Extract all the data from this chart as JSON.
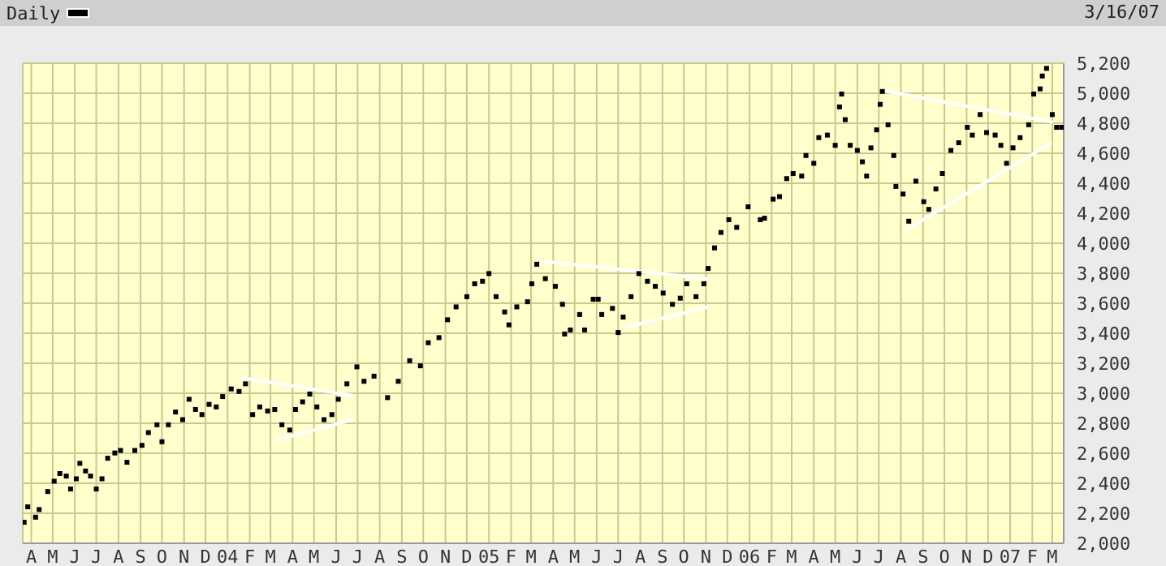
{
  "chart_data": {
    "type": "scatter",
    "subtitle": "3/16/07",
    "legend": "top left",
    "grid": true,
    "xlim": [
      "2003-03-20",
      "2007-03-17"
    ],
    "xticks": [
      {
        "value": "2003-04",
        "label": "A"
      },
      {
        "value": "2003-05",
        "label": "M"
      },
      {
        "value": "2003-06",
        "label": "J"
      },
      {
        "value": "2003-07",
        "label": "J"
      },
      {
        "value": "2003-08",
        "label": "A"
      },
      {
        "value": "2003-09",
        "label": "S"
      },
      {
        "value": "2003-10",
        "label": "O"
      },
      {
        "value": "2003-11",
        "label": "N"
      },
      {
        "value": "2003-12",
        "label": "D"
      },
      {
        "value": "2004-01",
        "label": "04"
      },
      {
        "value": "2004-02",
        "label": "F"
      },
      {
        "value": "2004-03",
        "label": "M"
      },
      {
        "value": "2004-04",
        "label": "A"
      },
      {
        "value": "2004-05",
        "label": "M"
      },
      {
        "value": "2004-06",
        "label": "J"
      },
      {
        "value": "2004-07",
        "label": "J"
      },
      {
        "value": "2004-08",
        "label": "A"
      },
      {
        "value": "2004-09",
        "label": "S"
      },
      {
        "value": "2004-10",
        "label": "O"
      },
      {
        "value": "2004-11",
        "label": "N"
      },
      {
        "value": "2004-12",
        "label": "D"
      },
      {
        "value": "2005-01",
        "label": "05"
      },
      {
        "value": "2005-02",
        "label": "F"
      },
      {
        "value": "2005-03",
        "label": "M"
      },
      {
        "value": "2005-04",
        "label": "A"
      },
      {
        "value": "2005-05",
        "label": "M"
      },
      {
        "value": "2005-06",
        "label": "J"
      },
      {
        "value": "2005-07",
        "label": "J"
      },
      {
        "value": "2005-08",
        "label": "A"
      },
      {
        "value": "2005-09",
        "label": "S"
      },
      {
        "value": "2005-10",
        "label": "O"
      },
      {
        "value": "2005-11",
        "label": "N"
      },
      {
        "value": "2005-12",
        "label": "D"
      },
      {
        "value": "2006-01",
        "label": "06"
      },
      {
        "value": "2006-02",
        "label": "F"
      },
      {
        "value": "2006-03",
        "label": "M"
      },
      {
        "value": "2006-04",
        "label": "A"
      },
      {
        "value": "2006-05",
        "label": "M"
      },
      {
        "value": "2006-06",
        "label": "J"
      },
      {
        "value": "2006-07",
        "label": "J"
      },
      {
        "value": "2006-08",
        "label": "A"
      },
      {
        "value": "2006-09",
        "label": "S"
      },
      {
        "value": "2006-10",
        "label": "O"
      },
      {
        "value": "2006-11",
        "label": "N"
      },
      {
        "value": "2006-12",
        "label": "D"
      },
      {
        "value": "2007-01",
        "label": "07"
      },
      {
        "value": "2007-02",
        "label": "F"
      },
      {
        "value": "2007-03",
        "label": "M"
      }
    ],
    "ylim": [
      2000,
      5200
    ],
    "yticks": [
      {
        "value": 2000,
        "label": "2,000"
      },
      {
        "value": 2200,
        "label": "2,200"
      },
      {
        "value": 2400,
        "label": "2,400"
      },
      {
        "value": 2600,
        "label": "2,600"
      },
      {
        "value": 2800,
        "label": "2,800"
      },
      {
        "value": 3000,
        "label": "3,000"
      },
      {
        "value": 3200,
        "label": "3,200"
      },
      {
        "value": 3400,
        "label": "3,400"
      },
      {
        "value": 3600,
        "label": "3,600"
      },
      {
        "value": 3800,
        "label": "3,800"
      },
      {
        "value": 4000,
        "label": "4,000"
      },
      {
        "value": 4200,
        "label": "4,200"
      },
      {
        "value": 4400,
        "label": "4,400"
      },
      {
        "value": 4600,
        "label": "4,600"
      },
      {
        "value": 4800,
        "label": "4,800"
      },
      {
        "value": 5000,
        "label": "5,000"
      },
      {
        "value": 5200,
        "label": "5,200"
      }
    ],
    "series": [
      {
        "name": "Daily",
        "marker": "square",
        "color": "#000000",
        "x": [
          "2003-03-22",
          "2003-03-27",
          "2003-04-07",
          "2003-04-12",
          "2003-04-24",
          "2003-05-03",
          "2003-05-11",
          "2003-05-20",
          "2003-05-26",
          "2003-06-03",
          "2003-06-08",
          "2003-06-16",
          "2003-06-23",
          "2003-07-01",
          "2003-07-09",
          "2003-07-17",
          "2003-07-27",
          "2003-08-04",
          "2003-08-13",
          "2003-08-24",
          "2003-09-03",
          "2003-09-12",
          "2003-09-24",
          "2003-10-01",
          "2003-10-10",
          "2003-10-20",
          "2003-10-30",
          "2003-11-08",
          "2003-11-17",
          "2003-11-26",
          "2003-12-06",
          "2003-12-16",
          "2003-12-25",
          "2004-01-06",
          "2004-01-17",
          "2004-01-26",
          "2004-02-05",
          "2004-02-15",
          "2004-02-26",
          "2004-03-07",
          "2004-03-17",
          "2004-03-28",
          "2004-04-05",
          "2004-04-15",
          "2004-04-25",
          "2004-05-05",
          "2004-05-15",
          "2004-05-26",
          "2004-06-04",
          "2004-06-16",
          "2004-06-30",
          "2004-07-10",
          "2004-07-24",
          "2004-08-12",
          "2004-08-27",
          "2004-09-12",
          "2004-09-27",
          "2004-10-08",
          "2004-10-23",
          "2004-11-04",
          "2004-11-16",
          "2004-12-01",
          "2004-12-12",
          "2004-12-23",
          "2005-01-01",
          "2005-01-11",
          "2005-01-23",
          "2005-01-29",
          "2005-02-09",
          "2005-02-24",
          "2005-03-02",
          "2005-03-09",
          "2005-03-21",
          "2005-04-04",
          "2005-04-14",
          "2005-04-17",
          "2005-04-25",
          "2005-05-08",
          "2005-05-15",
          "2005-05-27",
          "2005-06-03",
          "2005-06-08",
          "2005-06-23",
          "2005-07-01",
          "2005-07-08",
          "2005-07-19",
          "2005-07-30",
          "2005-08-11",
          "2005-08-22",
          "2005-09-02",
          "2005-09-15",
          "2005-09-26",
          "2005-10-05",
          "2005-10-18",
          "2005-10-29",
          "2005-11-04",
          "2005-11-13",
          "2005-11-22",
          "2005-12-03",
          "2005-12-14",
          "2005-12-30",
          "2006-01-16",
          "2006-01-22",
          "2006-02-03",
          "2006-02-12",
          "2006-02-22",
          "2006-03-03",
          "2006-03-15",
          "2006-03-21",
          "2006-04-01",
          "2006-04-08",
          "2006-04-20",
          "2006-05-01",
          "2006-05-07",
          "2006-05-10",
          "2006-05-15",
          "2006-05-22",
          "2006-06-01",
          "2006-06-08",
          "2006-06-14",
          "2006-06-20",
          "2006-06-28",
          "2006-07-03",
          "2006-07-06",
          "2006-07-14",
          "2006-07-22",
          "2006-07-25",
          "2006-08-04",
          "2006-08-12",
          "2006-08-22",
          "2006-09-02",
          "2006-09-09",
          "2006-09-19",
          "2006-09-28",
          "2006-10-10",
          "2006-10-21",
          "2006-11-02",
          "2006-11-09",
          "2006-11-20",
          "2006-11-29",
          "2006-12-11",
          "2006-12-19",
          "2006-12-27",
          "2007-01-05",
          "2007-01-15",
          "2007-01-27",
          "2007-02-03",
          "2007-02-12",
          "2007-02-15",
          "2007-02-21",
          "2007-03-01",
          "2007-03-07",
          "2007-03-14"
        ],
        "values": [
          2140,
          2243,
          2174,
          2225,
          2345,
          2414,
          2465,
          2448,
          2362,
          2430,
          2533,
          2482,
          2448,
          2362,
          2430,
          2567,
          2602,
          2619,
          2540,
          2619,
          2653,
          2738,
          2790,
          2677,
          2790,
          2875,
          2824,
          2960,
          2892,
          2858,
          2926,
          2909,
          2978,
          3029,
          3012,
          3063,
          2858,
          2909,
          2882,
          2892,
          2790,
          2755,
          2892,
          2943,
          2995,
          2909,
          2824,
          2858,
          2960,
          3063,
          3176,
          3080,
          3114,
          2971,
          3080,
          3217,
          3183,
          3337,
          3371,
          3490,
          3576,
          3644,
          3730,
          3747,
          3798,
          3644,
          3542,
          3456,
          3576,
          3610,
          3730,
          3860,
          3764,
          3713,
          3593,
          3395,
          3422,
          3525,
          3422,
          3627,
          3627,
          3525,
          3566,
          3405,
          3508,
          3644,
          3798,
          3747,
          3713,
          3668,
          3593,
          3634,
          3730,
          3644,
          3730,
          3832,
          3969,
          4072,
          4157,
          4106,
          4243,
          4157,
          4167,
          4294,
          4311,
          4431,
          4465,
          4448,
          4585,
          4533,
          4704,
          4721,
          4653,
          4909,
          4995,
          4824,
          4653,
          4619,
          4543,
          4448,
          4636,
          4756,
          4926,
          5012,
          4790,
          4585,
          4379,
          4328,
          4147,
          4414,
          4277,
          4226,
          4362,
          4465,
          4619,
          4670,
          4773,
          4721,
          4858,
          4738,
          4721,
          4653,
          4533,
          4636,
          4704,
          4790,
          4995,
          5029,
          5115,
          5166,
          4858,
          4773,
          4773
        ]
      },
      {
        "type": "line",
        "color": "#ffffff",
        "x": [
          "2004-01-20",
          "2004-06-24"
        ],
        "values": [
          3104,
          2985
        ]
      },
      {
        "type": "line",
        "color": "#ffffff",
        "x": [
          "2004-03-09",
          "2004-06-24"
        ],
        "values": [
          2687,
          2824
        ]
      },
      {
        "type": "line",
        "color": "#ffffff",
        "x": [
          "2005-03-12",
          "2005-11-03"
        ],
        "values": [
          3884,
          3764
        ]
      },
      {
        "type": "line",
        "color": "#ffffff",
        "x": [
          "2005-07-11",
          "2005-11-03"
        ],
        "values": [
          3439,
          3576
        ]
      },
      {
        "type": "line",
        "color": "#ffffff",
        "x": [
          "2006-07-03",
          "2007-03-02"
        ],
        "values": [
          5022,
          4807
        ]
      },
      {
        "type": "line",
        "color": "#ffffff",
        "x": [
          "2006-08-05",
          "2007-02-28"
        ],
        "values": [
          4079,
          4670
        ]
      }
    ]
  }
}
